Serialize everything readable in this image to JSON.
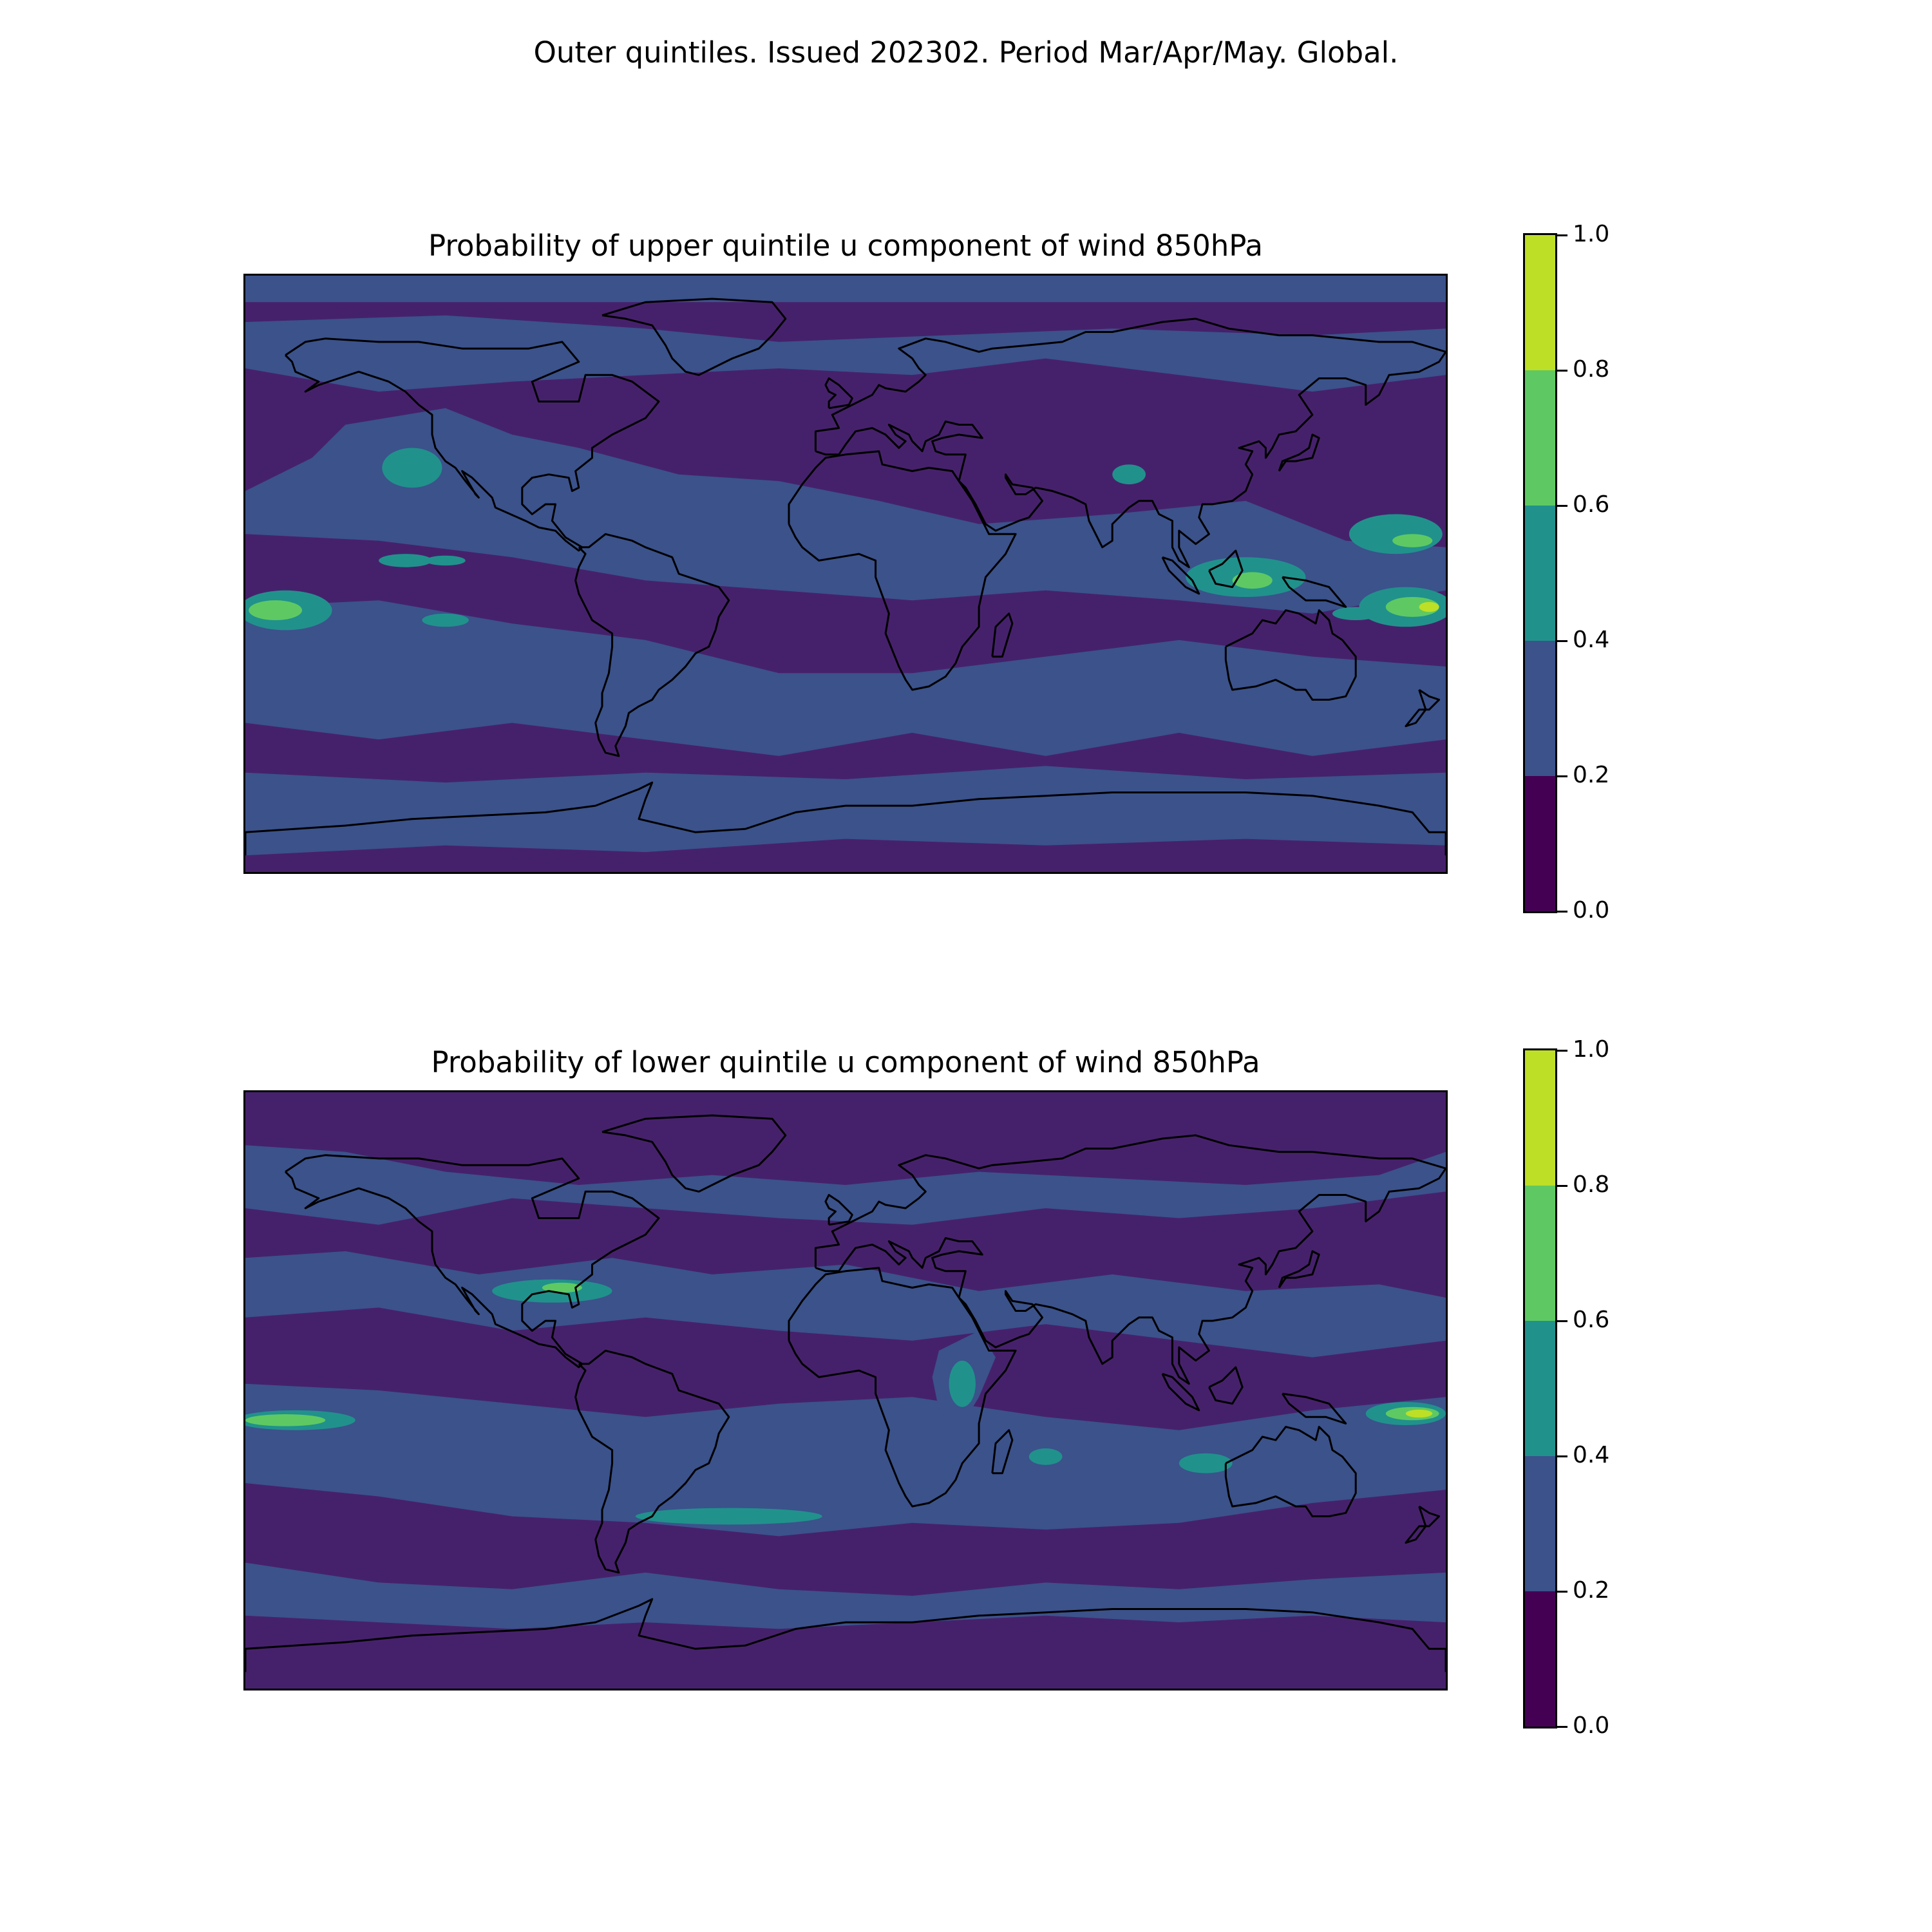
{
  "figure": {
    "suptitle": "Outer quintiles. Issued 202302. Period Mar/Apr/May. Global."
  },
  "colors": {
    "levels": [
      "#440154",
      "#3b528b",
      "#21918c",
      "#5ec962",
      "#bddf26"
    ],
    "background_level": "#46216b",
    "coastline": "#000000"
  },
  "panels": [
    {
      "title": "Probability of upper quintile u component of wind 850hPa",
      "colorbar": {
        "ticks": [
          "0.0",
          "0.2",
          "0.4",
          "0.6",
          "0.8",
          "1.0"
        ],
        "bounds": [
          0.0,
          0.2,
          0.4,
          0.6,
          0.8,
          1.0
        ]
      },
      "map": {
        "projection": "PlateCarree",
        "extent": "global",
        "coastlines": true
      }
    },
    {
      "title": "Probability of lower quintile u component of wind 850hPa",
      "colorbar": {
        "ticks": [
          "0.0",
          "0.2",
          "0.4",
          "0.6",
          "0.8",
          "1.0"
        ],
        "bounds": [
          0.0,
          0.2,
          0.4,
          0.6,
          0.8,
          1.0
        ]
      },
      "map": {
        "projection": "PlateCarree",
        "extent": "global",
        "coastlines": true
      }
    }
  ]
}
